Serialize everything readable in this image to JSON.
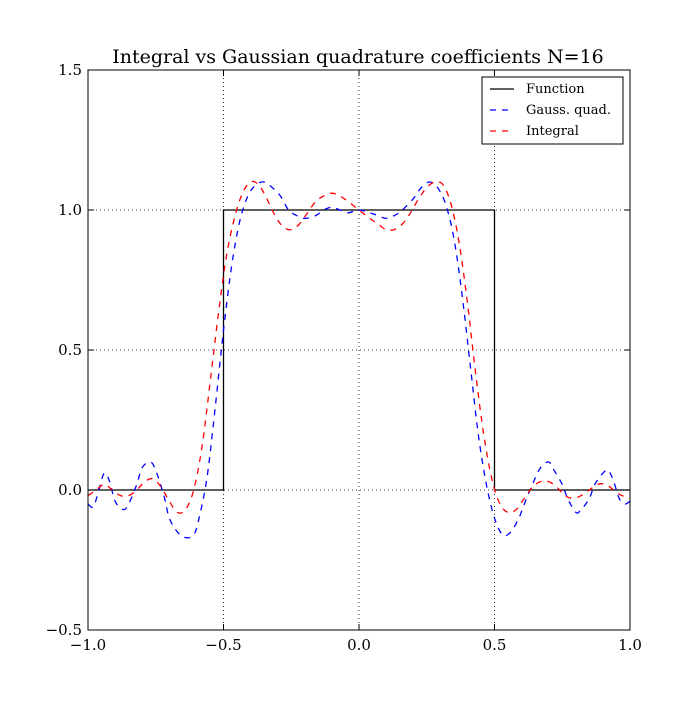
{
  "chart_data": {
    "type": "line",
    "title": "Integral vs Gaussian quadrature coefficients N=16",
    "xlabel": "",
    "ylabel": "",
    "xlim": [
      -1.0,
      1.0
    ],
    "ylim": [
      -0.5,
      1.5
    ],
    "xticks": [
      "−1.0",
      "−0.5",
      "0.0",
      "0.5",
      "1.0"
    ],
    "xtick_values": [
      -1.0,
      -0.5,
      0.0,
      0.5,
      1.0
    ],
    "yticks": [
      "−0.5",
      "0.0",
      "0.5",
      "1.0",
      "1.5"
    ],
    "ytick_values": [
      -0.5,
      0.0,
      0.5,
      1.0,
      1.5
    ],
    "grid": true,
    "legend_position": "top-right",
    "series": [
      {
        "name": "Function",
        "color": "#000000",
        "style": "solid",
        "x": [
          -1.0,
          -0.5,
          -0.5,
          0.5,
          0.5,
          1.0
        ],
        "y": [
          0.0,
          0.0,
          1.0,
          1.0,
          0.0,
          0.0
        ]
      },
      {
        "name": "Gauss. quad.",
        "color": "#0000ff",
        "style": "dashed",
        "x": [
          -1.0,
          -0.98,
          -0.96,
          -0.94,
          -0.92,
          -0.9,
          -0.87,
          -0.85,
          -0.82,
          -0.8,
          -0.77,
          -0.75,
          -0.72,
          -0.7,
          -0.67,
          -0.64,
          -0.61,
          -0.59,
          -0.56,
          -0.53,
          -0.5,
          -0.47,
          -0.44,
          -0.41,
          -0.38,
          -0.35,
          -0.32,
          -0.29,
          -0.26,
          -0.23,
          -0.2,
          -0.16,
          -0.13,
          -0.1,
          -0.07,
          -0.04,
          0.0,
          0.04,
          0.07,
          0.1,
          0.13,
          0.16,
          0.2,
          0.23,
          0.26,
          0.29,
          0.32,
          0.35,
          0.38,
          0.41,
          0.44,
          0.47,
          0.5,
          0.53,
          0.56,
          0.59,
          0.61,
          0.64,
          0.67,
          0.7,
          0.72,
          0.75,
          0.77,
          0.8,
          0.82,
          0.85,
          0.87,
          0.9,
          0.92,
          0.94,
          0.96,
          0.98,
          1.0
        ],
        "y": [
          -0.05,
          -0.06,
          0.0,
          0.06,
          0.03,
          -0.04,
          -0.07,
          -0.05,
          0.02,
          0.08,
          0.1,
          0.07,
          -0.02,
          -0.1,
          -0.15,
          -0.17,
          -0.16,
          -0.1,
          0.05,
          0.3,
          0.57,
          0.8,
          0.96,
          1.05,
          1.09,
          1.1,
          1.08,
          1.05,
          1.0,
          0.98,
          0.97,
          0.98,
          1.0,
          1.01,
          1.0,
          0.99,
          1.0,
          0.99,
          0.98,
          0.97,
          0.98,
          1.0,
          1.04,
          1.08,
          1.1,
          1.08,
          1.02,
          0.9,
          0.7,
          0.45,
          0.2,
          0.02,
          -0.1,
          -0.16,
          -0.15,
          -0.1,
          -0.05,
          0.02,
          0.08,
          0.1,
          0.07,
          0.02,
          -0.03,
          -0.08,
          -0.07,
          -0.03,
          0.02,
          0.06,
          0.07,
          0.03,
          -0.03,
          -0.05,
          -0.04
        ]
      },
      {
        "name": "Integral",
        "color": "#ff0000",
        "style": "dashed",
        "x": [
          -1.0,
          -0.97,
          -0.94,
          -0.91,
          -0.88,
          -0.85,
          -0.82,
          -0.79,
          -0.76,
          -0.73,
          -0.7,
          -0.67,
          -0.64,
          -0.61,
          -0.58,
          -0.55,
          -0.52,
          -0.49,
          -0.46,
          -0.43,
          -0.4,
          -0.37,
          -0.34,
          -0.31,
          -0.28,
          -0.25,
          -0.22,
          -0.19,
          -0.16,
          -0.13,
          -0.1,
          -0.07,
          -0.04,
          0.0,
          0.04,
          0.07,
          0.1,
          0.13,
          0.16,
          0.19,
          0.22,
          0.25,
          0.28,
          0.31,
          0.34,
          0.37,
          0.4,
          0.43,
          0.46,
          0.49,
          0.52,
          0.55,
          0.58,
          0.61,
          0.64,
          0.67,
          0.7,
          0.73,
          0.76,
          0.79,
          0.82,
          0.85,
          0.88,
          0.91,
          0.94,
          0.97,
          1.0
        ],
        "y": [
          -0.02,
          0.0,
          0.02,
          0.0,
          -0.02,
          -0.02,
          0.0,
          0.03,
          0.04,
          0.01,
          -0.04,
          -0.08,
          -0.07,
          0.0,
          0.15,
          0.38,
          0.62,
          0.83,
          0.97,
          1.06,
          1.1,
          1.09,
          1.04,
          0.98,
          0.94,
          0.93,
          0.95,
          0.99,
          1.03,
          1.05,
          1.06,
          1.05,
          1.03,
          1.0,
          0.97,
          0.95,
          0.93,
          0.93,
          0.95,
          0.99,
          1.04,
          1.08,
          1.1,
          1.09,
          1.02,
          0.88,
          0.67,
          0.42,
          0.2,
          0.04,
          -0.05,
          -0.08,
          -0.07,
          -0.03,
          0.01,
          0.03,
          0.03,
          0.01,
          -0.02,
          -0.03,
          -0.02,
          0.0,
          0.02,
          0.02,
          0.0,
          -0.02,
          -0.02
        ]
      }
    ]
  }
}
